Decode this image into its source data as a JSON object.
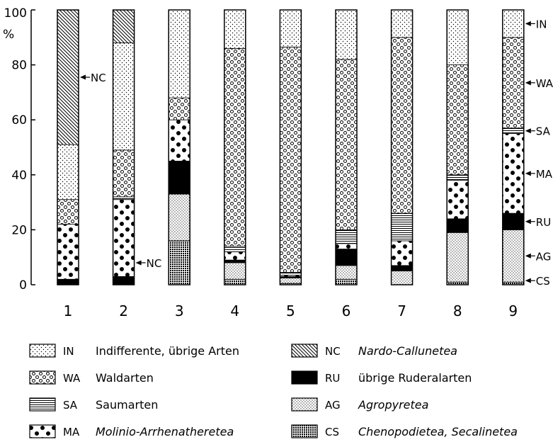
{
  "chart_data": {
    "type": "bar",
    "stacked": true,
    "y_unit_label": "%",
    "ylim": [
      0,
      100
    ],
    "yticks": [
      0,
      20,
      40,
      60,
      80,
      100
    ],
    "categories": [
      "1",
      "2",
      "3",
      "4",
      "5",
      "6",
      "7",
      "8",
      "9"
    ],
    "series": [
      {
        "code": "CS",
        "name": "Chenopodietea, Secalinetea",
        "italic": true,
        "pattern": "grid",
        "values": [
          0,
          0,
          16,
          2,
          0.5,
          2,
          0,
          1,
          1
        ]
      },
      {
        "code": "AG",
        "name": "Agropyretea",
        "italic": true,
        "pattern": "fine-dots",
        "values": [
          0,
          0,
          17,
          6,
          2,
          5,
          5,
          18,
          19
        ]
      },
      {
        "code": "RU",
        "name": "übrige Ruderalarten",
        "italic": false,
        "pattern": "solid",
        "values": [
          2,
          3,
          12,
          1,
          0.5,
          6,
          2,
          5,
          6
        ]
      },
      {
        "code": "MA",
        "name": "Molinio-Arrhenatheretea",
        "italic": true,
        "pattern": "large-dots",
        "values": [
          20,
          28,
          15,
          3,
          0.5,
          2,
          9,
          14,
          29
        ]
      },
      {
        "code": "SA",
        "name": "Saumarten",
        "italic": false,
        "pattern": "horizontal-lines",
        "values": [
          0,
          1,
          0,
          2,
          1,
          5,
          10,
          2,
          2
        ]
      },
      {
        "code": "WA",
        "name": "Waldarten",
        "italic": false,
        "pattern": "circles",
        "values": [
          9,
          17,
          8,
          72,
          82,
          62,
          64,
          40,
          33
        ]
      },
      {
        "code": "IN",
        "name": "Indifferente, übrige Arten",
        "italic": false,
        "pattern": "sparse-dots",
        "values": [
          20,
          39,
          32,
          14,
          13.5,
          18,
          10,
          20,
          10
        ]
      },
      {
        "code": "NC",
        "name": "Nardo-Callunetea",
        "italic": true,
        "pattern": "diagonal-lines",
        "values": [
          49,
          12,
          0,
          0,
          0,
          0,
          0,
          0,
          0
        ]
      }
    ],
    "annotations": [
      {
        "bar": "1",
        "code": "NC"
      },
      {
        "bar": "2",
        "code": "NC"
      },
      {
        "bar": "9",
        "code": "IN"
      },
      {
        "bar": "9",
        "code": "WA"
      },
      {
        "bar": "9",
        "code": "SA"
      },
      {
        "bar": "9",
        "code": "MA"
      },
      {
        "bar": "9",
        "code": "RU"
      },
      {
        "bar": "9",
        "code": "AG"
      },
      {
        "bar": "9",
        "code": "CS"
      }
    ],
    "legend_order": [
      "IN",
      "NC",
      "WA",
      "RU",
      "SA",
      "AG",
      "MA",
      "CS"
    ],
    "legend_position": "bottom",
    "grid": false
  }
}
